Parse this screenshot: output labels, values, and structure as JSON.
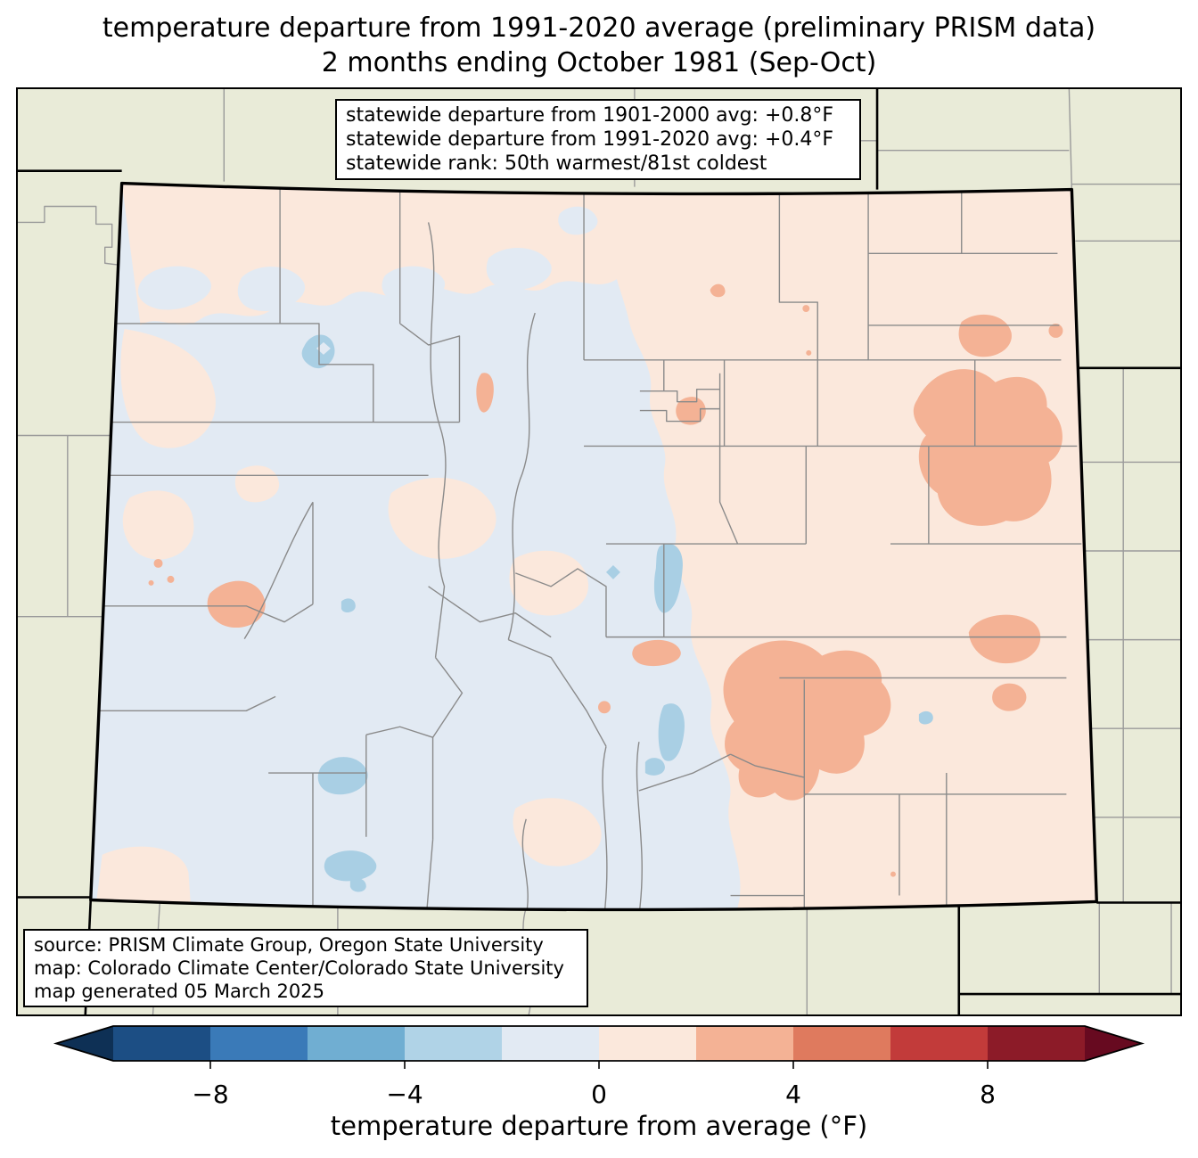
{
  "title": {
    "line1": "temperature departure from 1991-2020 average (preliminary PRISM data)",
    "line2": "2 months ending October 1981 (Sep-Oct)"
  },
  "stats_box": {
    "line1": "statewide departure from 1901-2000 avg: +0.8°F",
    "line2": "statewide departure from 1991-2020 avg: +0.4°F",
    "line3": "statewide rank: 50th warmest/81st coldest"
  },
  "statewide_values": {
    "departure_from_1901_2000_avg_f": 0.8,
    "departure_from_1991_2020_avg_f": 0.4,
    "rank_warmest": 50,
    "rank_coldest": 81
  },
  "source_box": {
    "line1": "source: PRISM Climate Group, Oregon State University",
    "line2": "map: Colorado Climate Center/Colorado State University",
    "line3": "map generated 05 March 2025"
  },
  "map": {
    "state": "Colorado",
    "period": "Sep-Oct 1981",
    "colors": {
      "outside": "#e9ebd8",
      "cool_base": "#e2eaf3",
      "warm_base": "#fbe8dc",
      "warm_anomaly": "#f4b295",
      "cool_anomaly": "#a9cfe4",
      "county_line": "#8a8a8a",
      "outside_county_line": "#9a9a9a",
      "state_border": "#000000"
    }
  },
  "colorbar": {
    "label": "temperature departure from average (°F)",
    "min": -10,
    "max": 10,
    "segment_colors": [
      "#1c4e84",
      "#3a7ab8",
      "#70aed2",
      "#b0d3e7",
      "#e2eaf3",
      "#fbe8dc",
      "#f4b295",
      "#df7a5e",
      "#c23b3a",
      "#8c1b28"
    ],
    "extend_low_color": "#0e3055",
    "extend_high_color": "#670a20",
    "ticks": [
      {
        "value": -8,
        "label": "−8"
      },
      {
        "value": -4,
        "label": "−4"
      },
      {
        "value": 0,
        "label": "0"
      },
      {
        "value": 4,
        "label": "4"
      },
      {
        "value": 8,
        "label": "8"
      }
    ]
  }
}
